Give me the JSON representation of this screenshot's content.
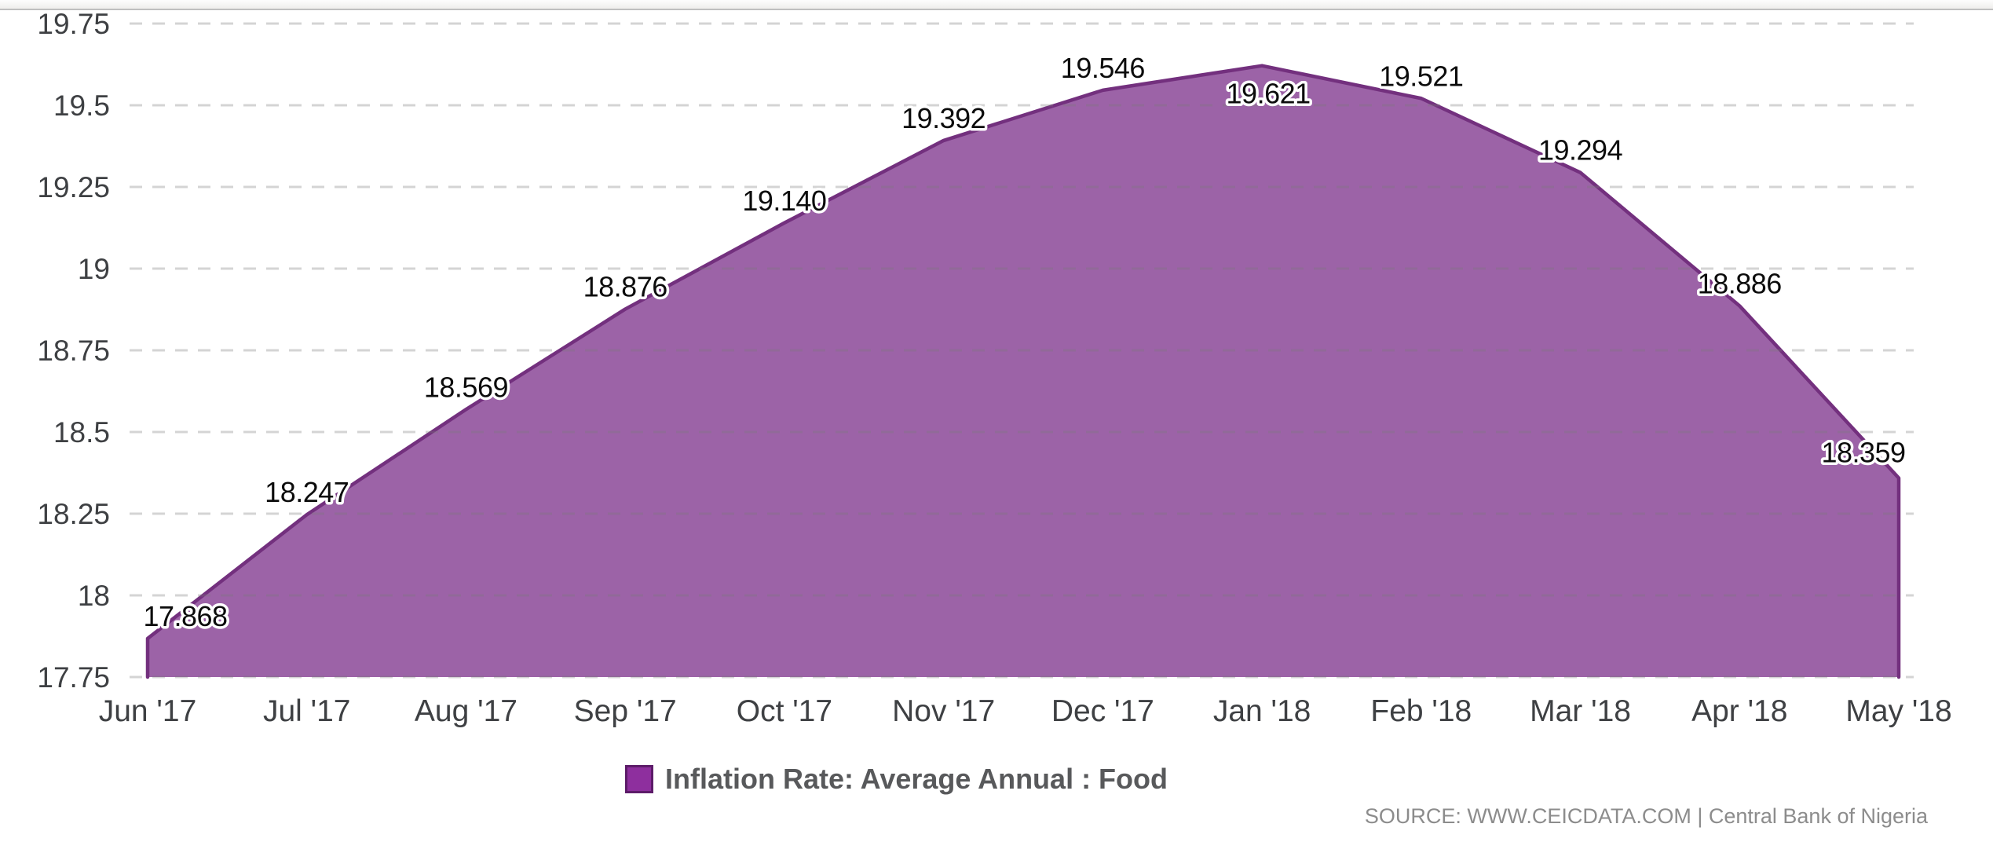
{
  "chart_data": {
    "type": "area",
    "title": "",
    "xlabel": "",
    "ylabel": "",
    "categories": [
      "Jun '17",
      "Jul '17",
      "Aug '17",
      "Sep '17",
      "Oct '17",
      "Nov '17",
      "Dec '17",
      "Jan '18",
      "Feb '18",
      "Mar '18",
      "Apr '18",
      "May '18"
    ],
    "series": [
      {
        "name": "Inflation Rate: Average Annual : Food",
        "values": [
          17.868,
          18.247,
          18.569,
          18.876,
          19.14,
          19.392,
          19.546,
          19.621,
          19.521,
          19.294,
          18.886,
          18.359
        ]
      }
    ],
    "value_labels": [
      "17.868",
      "18.247",
      "18.569",
      "18.876",
      "19.140",
      "19.392",
      "19.546",
      "19.621",
      "19.521",
      "19.294",
      "18.886",
      "18.359"
    ],
    "ylim": [
      17.75,
      19.75
    ],
    "yticks": {
      "values": [
        19.75,
        19.5,
        19.25,
        19,
        18.75,
        18.5,
        18.25,
        18,
        17.75
      ],
      "labels": [
        "19.75",
        "19.5",
        "19.25",
        "19",
        "18.75",
        "18.5",
        "18.25",
        "18",
        "17.75"
      ]
    },
    "grid": "horizontal-dashed",
    "legend_position": "bottom-center",
    "colors": {
      "area_fill": "#9c63a7",
      "area_line": "#73307e",
      "legend_swatch": "#8e2f9e",
      "legend_swatch_border": "#5d1c69",
      "gridline": "#787878",
      "axis_text": "#3e4043",
      "data_label": "#0c0c0c"
    }
  },
  "legend": {
    "label": "Inflation Rate: Average Annual : Food"
  },
  "source": {
    "text": "SOURCE: WWW.CEICDATA.COM | Central Bank of Nigeria"
  }
}
